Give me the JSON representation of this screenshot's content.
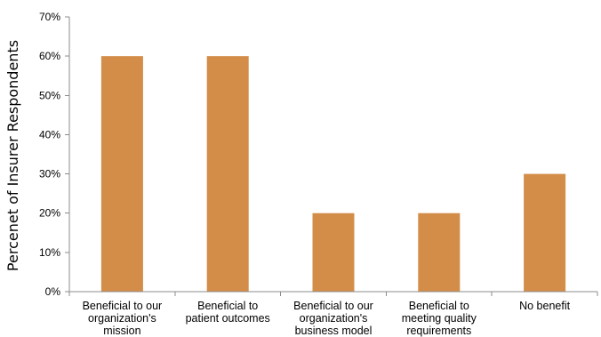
{
  "chart_data": {
    "type": "bar",
    "title": "",
    "xlabel": "",
    "ylabel": "Percenet of Insurer Respondents",
    "ylim": [
      0,
      70
    ],
    "ytick_labels": [
      "0%",
      "10%",
      "20%",
      "30%",
      "40%",
      "50%",
      "60%",
      "70%"
    ],
    "categories": [
      [
        "Beneficial to our",
        "organization's",
        "mission"
      ],
      [
        "Beneficial to",
        "patient outcomes"
      ],
      [
        "Beneficial to our",
        "organization's",
        "business model"
      ],
      [
        "Beneficial to",
        "meeting quality",
        "requirements"
      ],
      [
        "No benefit"
      ]
    ],
    "values": [
      60,
      60,
      20,
      20,
      30
    ],
    "grid": false,
    "legend": "none",
    "colors": {
      "bar": "#d38d48",
      "axis": "#8c8c8c",
      "text": "#000000"
    }
  }
}
